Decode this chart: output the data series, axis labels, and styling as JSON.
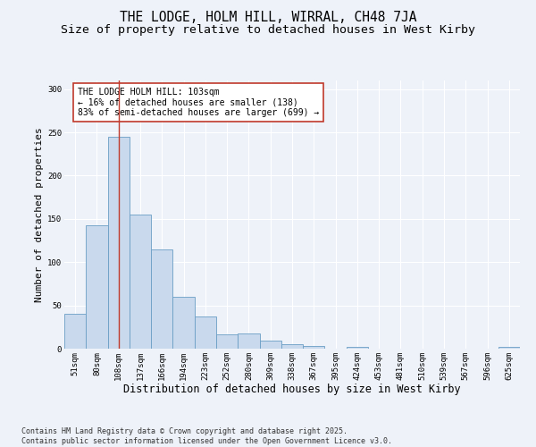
{
  "title1": "THE LODGE, HOLM HILL, WIRRAL, CH48 7JA",
  "title2": "Size of property relative to detached houses in West Kirby",
  "xlabel": "Distribution of detached houses by size in West Kirby",
  "ylabel": "Number of detached properties",
  "categories": [
    "51sqm",
    "80sqm",
    "108sqm",
    "137sqm",
    "166sqm",
    "194sqm",
    "223sqm",
    "252sqm",
    "280sqm",
    "309sqm",
    "338sqm",
    "367sqm",
    "395sqm",
    "424sqm",
    "453sqm",
    "481sqm",
    "510sqm",
    "539sqm",
    "567sqm",
    "596sqm",
    "625sqm"
  ],
  "values": [
    40,
    143,
    245,
    155,
    115,
    60,
    37,
    17,
    18,
    9,
    5,
    3,
    0,
    2,
    0,
    0,
    0,
    0,
    0,
    0,
    2
  ],
  "bar_color": "#c9d9ed",
  "bar_edge_color": "#6a9ec5",
  "highlight_index": 2,
  "highlight_line_color": "#c0392b",
  "annotation_text": "THE LODGE HOLM HILL: 103sqm\n← 16% of detached houses are smaller (138)\n83% of semi-detached houses are larger (699) →",
  "annotation_box_color": "#ffffff",
  "annotation_box_edge_color": "#c0392b",
  "ylim": [
    0,
    310
  ],
  "yticks": [
    0,
    50,
    100,
    150,
    200,
    250,
    300
  ],
  "background_color": "#eef2f9",
  "grid_color": "#ffffff",
  "footer_text": "Contains HM Land Registry data © Crown copyright and database right 2025.\nContains public sector information licensed under the Open Government Licence v3.0.",
  "title1_fontsize": 10.5,
  "title2_fontsize": 9.5,
  "xlabel_fontsize": 8.5,
  "ylabel_fontsize": 8,
  "tick_fontsize": 6.5,
  "annotation_fontsize": 7,
  "footer_fontsize": 6
}
